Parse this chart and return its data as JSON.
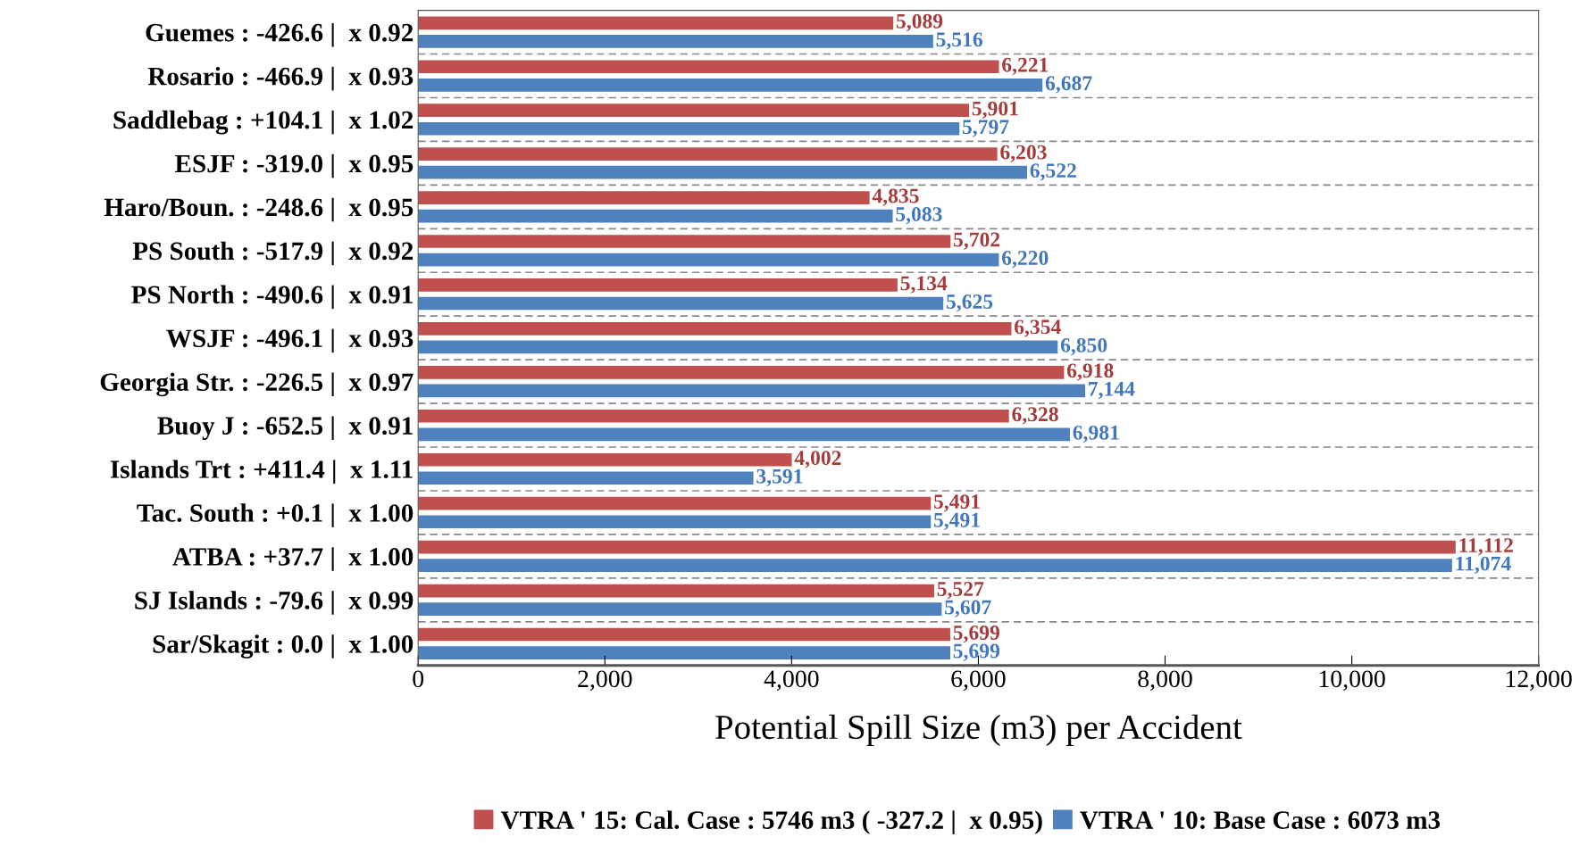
{
  "chart_data": {
    "type": "bar",
    "orientation": "horizontal",
    "xlabel": "Potential Spill Size (m3) per Accident",
    "categories": [
      "Guemes : -426.6 |  x 0.92",
      "Rosario : -466.9 |  x 0.93",
      "Saddlebag : +104.1 |  x 1.02",
      "ESJF : -319.0 |  x 0.95",
      "Haro/Boun. : -248.6 |  x 0.95",
      "PS South : -517.9 |  x 0.92",
      "PS North : -490.6 |  x 0.91",
      "WSJF : -496.1 |  x 0.93",
      "Georgia Str. : -226.5 |  x 0.97",
      "Buoy J : -652.5 |  x 0.91",
      "Islands Trt : +411.4 |  x 1.11",
      "Tac. South : +0.1 |  x 1.00",
      "ATBA : +37.7 |  x 1.00",
      "SJ Islands : -79.6 |  x 0.99",
      "Sar/Skagit : 0.0 |  x 1.00"
    ],
    "series": [
      {
        "name": "VTRA ' 15: Cal. Case : 5746 m3 ( -327.2 |  x 0.95)",
        "color": "#c0504d",
        "values": [
          5089,
          6221,
          5901,
          6203,
          4835,
          5702,
          5134,
          6354,
          6918,
          6328,
          4002,
          5491,
          11112,
          5527,
          5699
        ],
        "value_labels": [
          "5,089",
          "6,221",
          "5,901",
          "6,203",
          "4,835",
          "5,702",
          "5,134",
          "6,354",
          "6,918",
          "6,328",
          "4,002",
          "5,491",
          "11,112",
          "5,527",
          "5,699"
        ]
      },
      {
        "name": "VTRA ' 10: Base Case : 6073 m3",
        "color": "#4f81bd",
        "values": [
          5516,
          6687,
          5797,
          6522,
          5083,
          6220,
          5625,
          6850,
          7144,
          6981,
          3591,
          5491,
          11074,
          5607,
          5699
        ],
        "value_labels": [
          "5,516",
          "6,687",
          "5,797",
          "6,522",
          "5,083",
          "6,220",
          "5,625",
          "6,850",
          "7,144",
          "6,981",
          "3,591",
          "5,491",
          "11,074",
          "5,607",
          "5,699"
        ]
      }
    ],
    "xlim": [
      0,
      12000
    ],
    "xticks": [
      0,
      {
        "value": 2000,
        "label": "2,000"
      },
      {
        "value": 4000,
        "label": "4,000"
      },
      {
        "value": 6000,
        "label": "6,000"
      },
      {
        "value": 8000,
        "label": "8,000"
      },
      {
        "value": 10000,
        "label": "10,000"
      },
      {
        "value": 12000,
        "label": "12,000"
      }
    ],
    "grid": "y",
    "legend": "bottom"
  }
}
